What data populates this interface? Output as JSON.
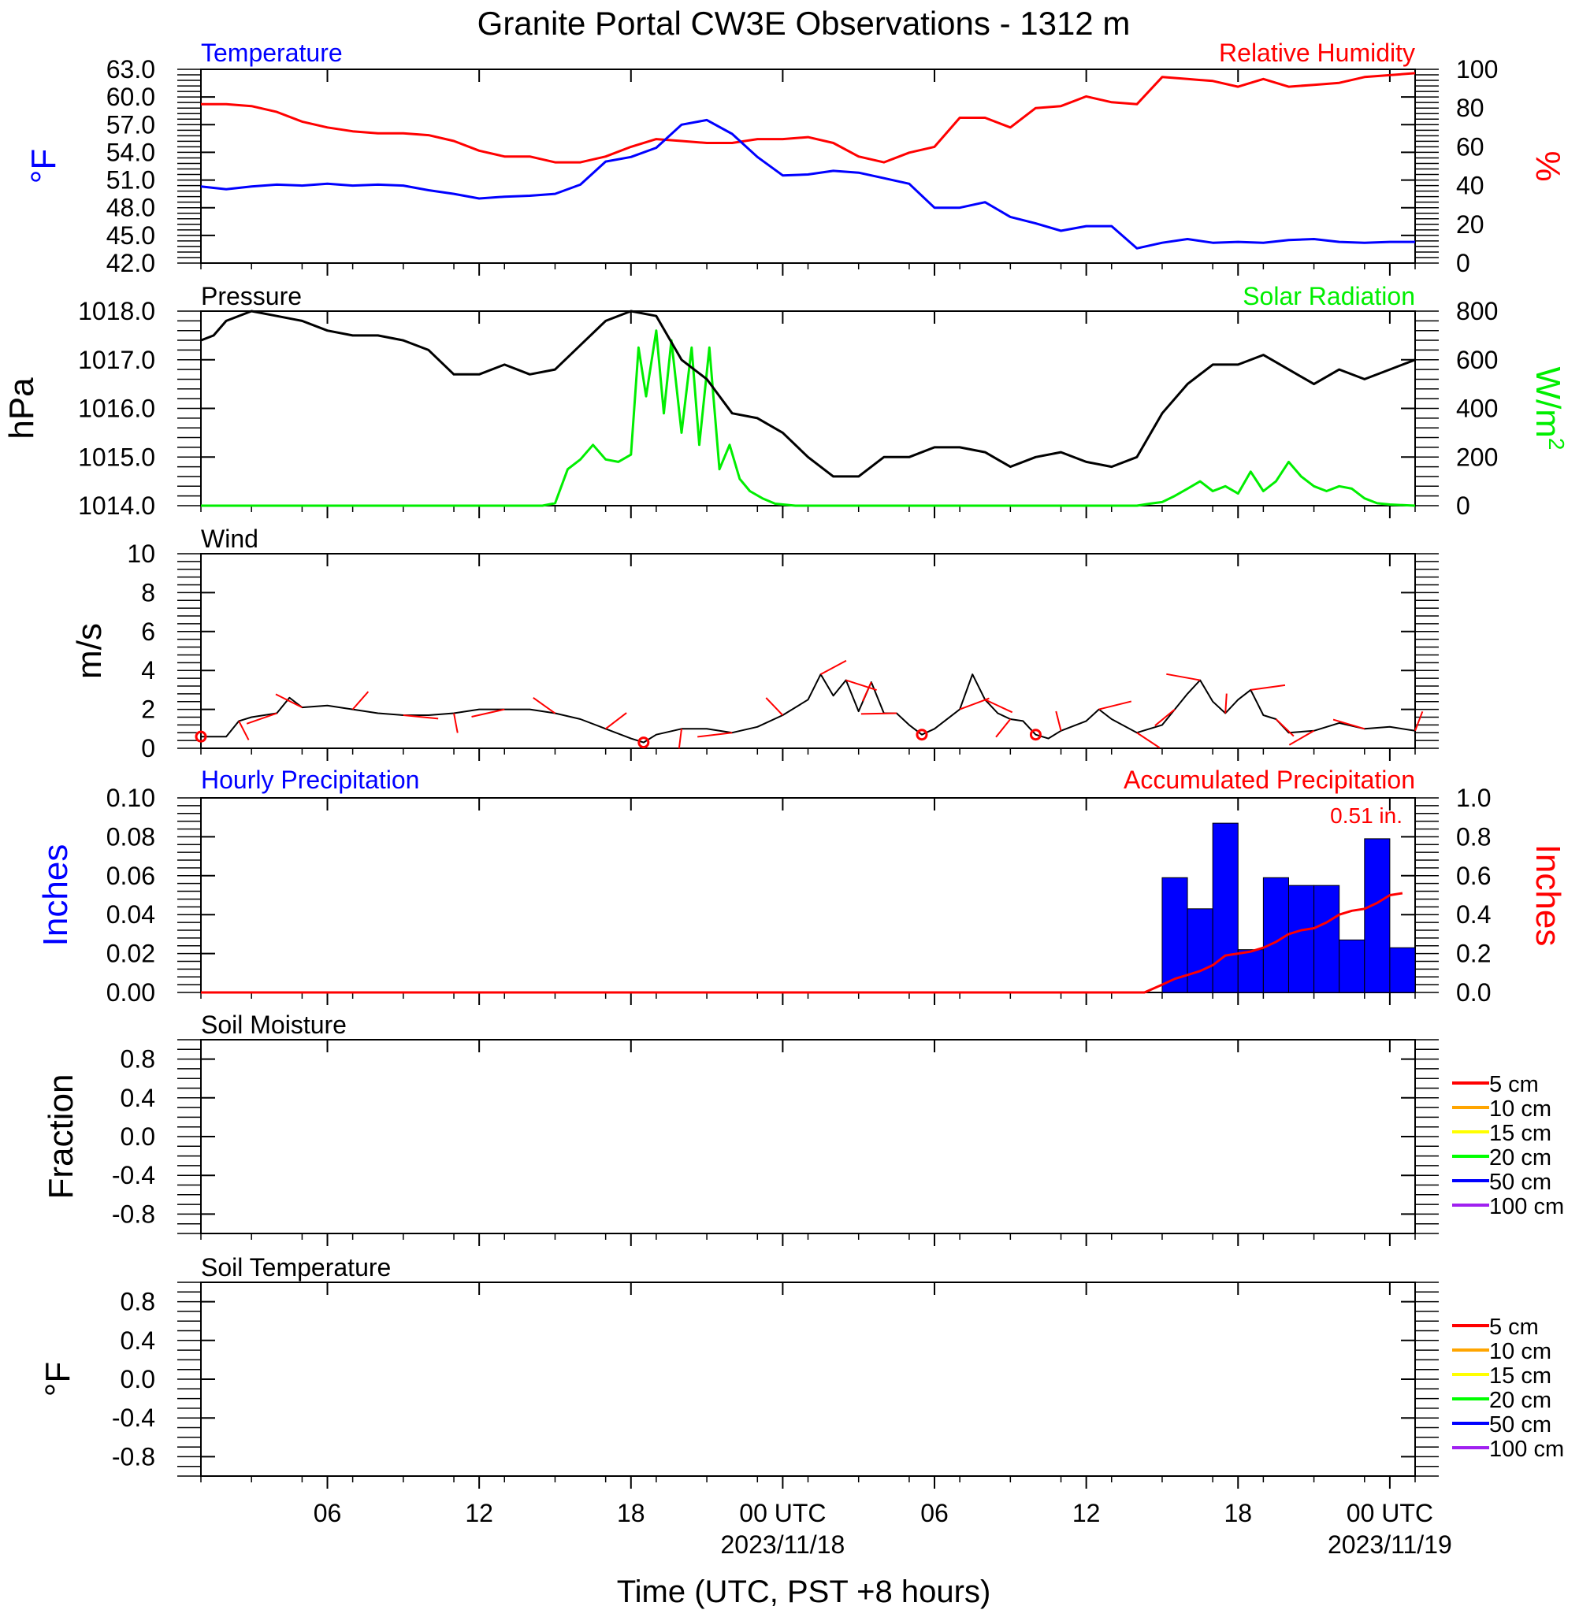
{
  "title": "Granite Portal CW3E Observations - 1312 m",
  "xaxis": {
    "label": "Time (UTC, PST +8 hours)",
    "ticks": [
      {
        "h": 5,
        "label": "06"
      },
      {
        "h": 11,
        "label": "12"
      },
      {
        "h": 17,
        "label": "18"
      },
      {
        "h": 23,
        "label": "00 UTC",
        "sub": "2023/11/18"
      },
      {
        "h": 29,
        "label": "06"
      },
      {
        "h": 35,
        "label": "12"
      },
      {
        "h": 41,
        "label": "18"
      },
      {
        "h": 47,
        "label": "00 UTC",
        "sub": "2023/11/19"
      }
    ],
    "range_hours": [
      0,
      48
    ]
  },
  "panels": {
    "temperature": {
      "left_label": "Temperature",
      "right_label": "Relative Humidity",
      "left_unit": "°F",
      "right_unit": "%",
      "left_ticks": [
        "63.0",
        "60.0",
        "57.0",
        "54.0",
        "51.0",
        "48.0",
        "45.0",
        "42.0"
      ],
      "right_ticks": [
        "100",
        "80",
        "60",
        "40",
        "20",
        "0"
      ]
    },
    "pressure": {
      "left_label": "Pressure",
      "right_label": "Solar Radiation",
      "left_unit": "hPa",
      "right_unit_base": "W/m",
      "right_unit_sup": "2",
      "left_ticks": [
        "1018.0",
        "1017.0",
        "1016.0",
        "1015.0",
        "1014.0"
      ],
      "right_ticks": [
        "800",
        "600",
        "400",
        "200",
        "0"
      ]
    },
    "wind": {
      "left_label": "Wind",
      "left_unit": "m/s",
      "left_ticks": [
        "10",
        "8",
        "6",
        "4",
        "2",
        "0"
      ]
    },
    "precip": {
      "left_label": "Hourly Precipitation",
      "right_label": "Accumulated Precipitation",
      "total_label": "0.51 in.",
      "left_unit": "Inches",
      "right_unit": "Inches",
      "left_ticks": [
        "0.10",
        "0.08",
        "0.06",
        "0.04",
        "0.02",
        "0.00"
      ],
      "right_ticks": [
        "1.0",
        "0.8",
        "0.6",
        "0.4",
        "0.2",
        "0.0"
      ]
    },
    "soil_moisture": {
      "left_label": "Soil Moisture",
      "left_unit": "Fraction",
      "left_ticks": [
        "0.8",
        "0.4",
        "0.0",
        "-0.4",
        "-0.8"
      ]
    },
    "soil_temperature": {
      "left_label": "Soil Temperature",
      "left_unit": "°F",
      "left_ticks": [
        "0.8",
        "0.4",
        "0.0",
        "-0.4",
        "-0.8"
      ]
    }
  },
  "legend": [
    {
      "label": "5 cm",
      "color": "#ff0000"
    },
    {
      "label": "10 cm",
      "color": "#ffa500"
    },
    {
      "label": "15 cm",
      "color": "#ffff00"
    },
    {
      "label": "20 cm",
      "color": "#00ff00"
    },
    {
      "label": "50 cm",
      "color": "#0000ff"
    },
    {
      "label": "100 cm",
      "color": "#a020f0"
    }
  ],
  "colors": {
    "temperature": "#0000ff",
    "humidity": "#ff0000",
    "pressure": "#000000",
    "solar": "#00ee00",
    "wind": "#000000",
    "wind_barb": "#ff0000",
    "precip_bar": "#0000ff",
    "accum": "#ff0000"
  },
  "chart_data": {
    "type": "line",
    "temperature_F": [
      [
        0,
        50.3
      ],
      [
        1,
        50.0
      ],
      [
        2,
        50.3
      ],
      [
        3,
        50.5
      ],
      [
        4,
        50.4
      ],
      [
        5,
        50.6
      ],
      [
        6,
        50.4
      ],
      [
        7,
        50.5
      ],
      [
        8,
        50.4
      ],
      [
        9,
        49.9
      ],
      [
        10,
        49.5
      ],
      [
        11,
        49.0
      ],
      [
        12,
        49.2
      ],
      [
        13,
        49.3
      ],
      [
        14,
        49.5
      ],
      [
        15,
        50.5
      ],
      [
        16,
        53.0
      ],
      [
        17,
        53.5
      ],
      [
        18,
        54.5
      ],
      [
        19,
        57.0
      ],
      [
        20,
        57.5
      ],
      [
        21,
        56.0
      ],
      [
        22,
        53.5
      ],
      [
        23,
        51.5
      ],
      [
        24,
        51.6
      ],
      [
        25,
        52.0
      ],
      [
        26,
        51.8
      ],
      [
        27,
        51.2
      ],
      [
        28,
        50.6
      ],
      [
        29,
        48.0
      ],
      [
        30,
        48.0
      ],
      [
        31,
        48.6
      ],
      [
        32,
        47.0
      ],
      [
        33,
        46.3
      ],
      [
        34,
        45.5
      ],
      [
        35,
        46.0
      ],
      [
        36,
        46.0
      ],
      [
        37,
        43.6
      ],
      [
        38,
        44.2
      ],
      [
        39,
        44.6
      ],
      [
        40,
        44.2
      ],
      [
        41,
        44.3
      ],
      [
        42,
        44.2
      ],
      [
        43,
        44.5
      ],
      [
        44,
        44.6
      ],
      [
        45,
        44.3
      ],
      [
        46,
        44.2
      ],
      [
        47,
        44.3
      ],
      [
        48,
        44.3
      ]
    ],
    "relative_humidity_pct": [
      [
        0,
        82
      ],
      [
        1,
        82
      ],
      [
        2,
        81
      ],
      [
        3,
        78
      ],
      [
        4,
        73
      ],
      [
        5,
        70
      ],
      [
        6,
        68
      ],
      [
        7,
        67
      ],
      [
        8,
        67
      ],
      [
        9,
        66
      ],
      [
        10,
        63
      ],
      [
        11,
        58
      ],
      [
        12,
        55
      ],
      [
        13,
        55
      ],
      [
        14,
        52
      ],
      [
        15,
        52
      ],
      [
        16,
        55
      ],
      [
        17,
        60
      ],
      [
        18,
        64
      ],
      [
        19,
        63
      ],
      [
        20,
        62
      ],
      [
        21,
        62
      ],
      [
        22,
        64
      ],
      [
        23,
        64
      ],
      [
        24,
        65
      ],
      [
        25,
        62
      ],
      [
        26,
        55
      ],
      [
        27,
        52
      ],
      [
        28,
        57
      ],
      [
        29,
        60
      ],
      [
        30,
        75
      ],
      [
        31,
        75
      ],
      [
        32,
        70
      ],
      [
        33,
        80
      ],
      [
        34,
        81
      ],
      [
        35,
        86
      ],
      [
        36,
        83
      ],
      [
        37,
        82
      ],
      [
        38,
        96
      ],
      [
        39,
        95
      ],
      [
        40,
        94
      ],
      [
        41,
        91
      ],
      [
        42,
        95
      ],
      [
        43,
        91
      ],
      [
        44,
        92
      ],
      [
        45,
        93
      ],
      [
        46,
        96
      ],
      [
        47,
        97
      ],
      [
        48,
        98
      ]
    ],
    "pressure_hPa": [
      [
        0,
        1017.4
      ],
      [
        0.5,
        1017.5
      ],
      [
        1,
        1017.8
      ],
      [
        2,
        1018.0
      ],
      [
        3,
        1017.9
      ],
      [
        4,
        1017.8
      ],
      [
        5,
        1017.6
      ],
      [
        6,
        1017.5
      ],
      [
        7,
        1017.5
      ],
      [
        8,
        1017.4
      ],
      [
        9,
        1017.2
      ],
      [
        10,
        1016.7
      ],
      [
        11,
        1016.7
      ],
      [
        12,
        1016.9
      ],
      [
        13,
        1016.7
      ],
      [
        14,
        1016.8
      ],
      [
        15,
        1017.3
      ],
      [
        16,
        1017.8
      ],
      [
        17,
        1018.0
      ],
      [
        18,
        1017.9
      ],
      [
        19,
        1017.0
      ],
      [
        20,
        1016.6
      ],
      [
        21,
        1015.9
      ],
      [
        22,
        1015.8
      ],
      [
        23,
        1015.5
      ],
      [
        24,
        1015.0
      ],
      [
        25,
        1014.6
      ],
      [
        26,
        1014.6
      ],
      [
        27,
        1015.0
      ],
      [
        28,
        1015.0
      ],
      [
        29,
        1015.2
      ],
      [
        30,
        1015.2
      ],
      [
        31,
        1015.1
      ],
      [
        32,
        1014.8
      ],
      [
        33,
        1015.0
      ],
      [
        34,
        1015.1
      ],
      [
        35,
        1014.9
      ],
      [
        36,
        1014.8
      ],
      [
        37,
        1015.0
      ],
      [
        38,
        1015.9
      ],
      [
        39,
        1016.5
      ],
      [
        40,
        1016.9
      ],
      [
        41,
        1016.9
      ],
      [
        42,
        1017.1
      ],
      [
        43,
        1016.8
      ],
      [
        44,
        1016.5
      ],
      [
        45,
        1016.8
      ],
      [
        46,
        1016.6
      ],
      [
        47,
        1016.8
      ],
      [
        48,
        1017.0
      ]
    ],
    "solar_W_m2": [
      [
        0,
        0
      ],
      [
        13.5,
        0
      ],
      [
        14,
        10
      ],
      [
        14.5,
        150
      ],
      [
        15,
        190
      ],
      [
        15.5,
        250
      ],
      [
        16,
        190
      ],
      [
        16.5,
        180
      ],
      [
        17,
        210
      ],
      [
        17.3,
        650
      ],
      [
        17.6,
        450
      ],
      [
        18,
        720
      ],
      [
        18.3,
        380
      ],
      [
        18.6,
        680
      ],
      [
        19,
        300
      ],
      [
        19.4,
        650
      ],
      [
        19.7,
        250
      ],
      [
        20.1,
        650
      ],
      [
        20.5,
        150
      ],
      [
        20.9,
        250
      ],
      [
        21.3,
        110
      ],
      [
        21.7,
        60
      ],
      [
        22.2,
        30
      ],
      [
        22.7,
        8
      ],
      [
        23.5,
        0
      ],
      [
        37,
        0
      ],
      [
        37.5,
        8
      ],
      [
        38,
        15
      ],
      [
        38.5,
        40
      ],
      [
        39,
        70
      ],
      [
        39.5,
        100
      ],
      [
        40,
        60
      ],
      [
        40.5,
        80
      ],
      [
        41,
        50
      ],
      [
        41.5,
        140
      ],
      [
        42,
        60
      ],
      [
        42.5,
        100
      ],
      [
        43,
        180
      ],
      [
        43.5,
        120
      ],
      [
        44,
        80
      ],
      [
        44.5,
        60
      ],
      [
        45,
        80
      ],
      [
        45.5,
        70
      ],
      [
        46,
        30
      ],
      [
        46.5,
        10
      ],
      [
        47,
        5
      ],
      [
        48,
        0
      ]
    ],
    "wind_speed_m_s": [
      [
        0,
        0.6
      ],
      [
        1,
        0.6
      ],
      [
        1.5,
        1.4
      ],
      [
        2,
        1.6
      ],
      [
        3,
        1.8
      ],
      [
        3.5,
        2.6
      ],
      [
        4,
        2.1
      ],
      [
        5,
        2.2
      ],
      [
        6,
        2.0
      ],
      [
        7,
        1.8
      ],
      [
        8,
        1.7
      ],
      [
        9,
        1.7
      ],
      [
        10,
        1.8
      ],
      [
        11,
        2.0
      ],
      [
        12,
        2.0
      ],
      [
        13,
        2.0
      ],
      [
        14,
        1.8
      ],
      [
        15,
        1.5
      ],
      [
        16,
        1.0
      ],
      [
        17,
        0.5
      ],
      [
        17.5,
        0.3
      ],
      [
        18,
        0.7
      ],
      [
        19,
        1.0
      ],
      [
        20,
        1.0
      ],
      [
        21,
        0.8
      ],
      [
        22,
        1.1
      ],
      [
        23,
        1.7
      ],
      [
        24,
        2.5
      ],
      [
        24.5,
        3.8
      ],
      [
        25,
        2.7
      ],
      [
        25.5,
        3.5
      ],
      [
        26,
        1.9
      ],
      [
        26.5,
        3.4
      ],
      [
        27,
        1.8
      ],
      [
        27.5,
        1.8
      ],
      [
        28,
        1.2
      ],
      [
        28.5,
        0.7
      ],
      [
        29,
        1.0
      ],
      [
        30,
        2.0
      ],
      [
        30.5,
        3.8
      ],
      [
        31,
        2.5
      ],
      [
        31.5,
        1.8
      ],
      [
        32,
        1.5
      ],
      [
        32.5,
        1.4
      ],
      [
        33,
        0.7
      ],
      [
        33.5,
        0.5
      ],
      [
        34,
        0.9
      ],
      [
        35,
        1.4
      ],
      [
        35.5,
        2.0
      ],
      [
        36,
        1.5
      ],
      [
        37,
        0.8
      ],
      [
        38,
        1.2
      ],
      [
        38.5,
        2.0
      ],
      [
        39,
        2.8
      ],
      [
        39.5,
        3.5
      ],
      [
        40,
        2.4
      ],
      [
        40.5,
        1.8
      ],
      [
        41,
        2.5
      ],
      [
        41.5,
        3.0
      ],
      [
        42,
        1.7
      ],
      [
        42.5,
        1.5
      ],
      [
        43,
        0.8
      ],
      [
        44,
        0.9
      ],
      [
        45,
        1.3
      ],
      [
        46,
        1.0
      ],
      [
        47,
        1.1
      ],
      [
        48,
        0.9
      ]
    ],
    "precip_hourly_in": [
      [
        38,
        0.059
      ],
      [
        39,
        0.043
      ],
      [
        40,
        0.087
      ],
      [
        41,
        0.022
      ],
      [
        42,
        0.059
      ],
      [
        43,
        0.055
      ],
      [
        44,
        0.055
      ],
      [
        45,
        0.027
      ],
      [
        46,
        0.079
      ],
      [
        47,
        0.023
      ]
    ],
    "precip_accum_in": [
      [
        0,
        0
      ],
      [
        37.3,
        0
      ],
      [
        38,
        0.04
      ],
      [
        38.5,
        0.07
      ],
      [
        39,
        0.09
      ],
      [
        39.5,
        0.11
      ],
      [
        40,
        0.14
      ],
      [
        40.5,
        0.19
      ],
      [
        41,
        0.2
      ],
      [
        41.5,
        0.21
      ],
      [
        42,
        0.23
      ],
      [
        42.5,
        0.26
      ],
      [
        43,
        0.3
      ],
      [
        43.5,
        0.32
      ],
      [
        44,
        0.33
      ],
      [
        44.5,
        0.36
      ],
      [
        45,
        0.4
      ],
      [
        45.5,
        0.42
      ],
      [
        46,
        0.43
      ],
      [
        46.5,
        0.46
      ],
      [
        47,
        0.5
      ],
      [
        47.5,
        0.51
      ]
    ],
    "ranges": {
      "temperature": [
        42,
        63
      ],
      "humidity": [
        0,
        100
      ],
      "pressure": [
        1014,
        1018
      ],
      "solar": [
        0,
        800
      ],
      "wind": [
        0,
        10
      ],
      "precip_hourly": [
        0,
        0.1
      ],
      "precip_accum": [
        0,
        1.0
      ],
      "soil": [
        -1,
        1
      ]
    }
  }
}
